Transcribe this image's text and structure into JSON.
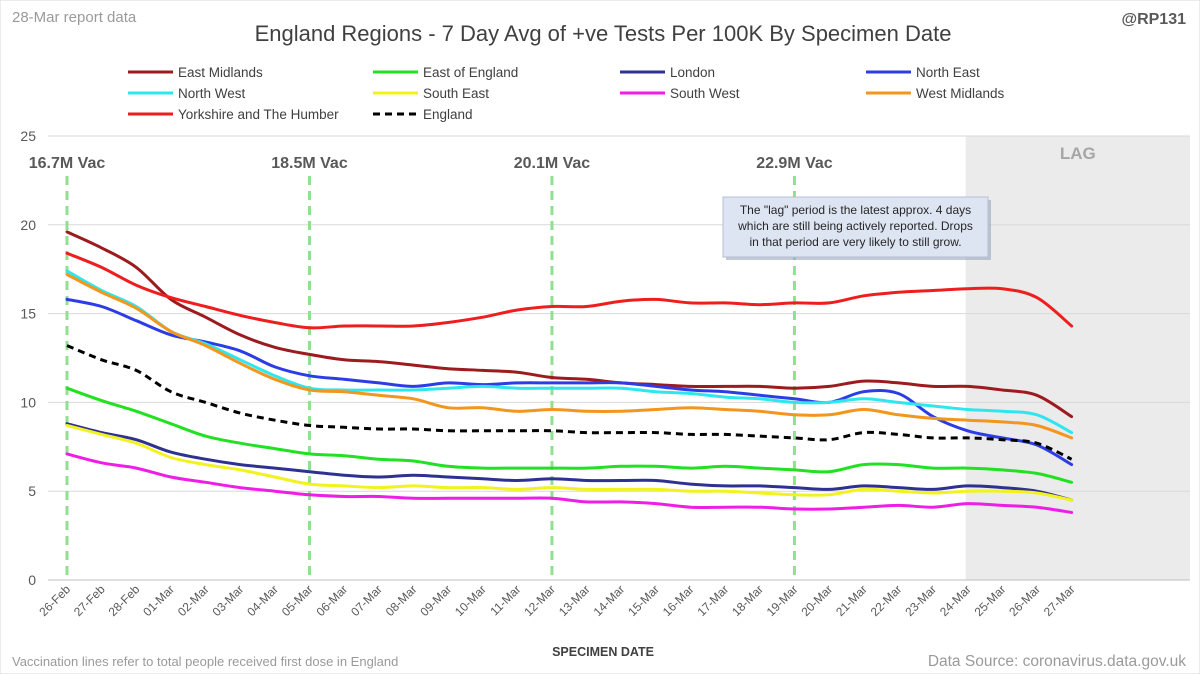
{
  "header": {
    "report_label": "28-Mar report data",
    "handle": "@RP131"
  },
  "footer": {
    "vaccination_note": "Vaccination lines refer to total people received first dose in England",
    "data_source": "Data Source: coronavirus.data.gov.uk"
  },
  "chart_data": {
    "type": "line",
    "title": "England Regions - 7 Day Avg of +ve Tests Per 100K By Specimen Date",
    "xlabel": "SPECIMEN DATE",
    "ylabel": "",
    "ylim": [
      0,
      25
    ],
    "yticks": [
      0,
      5,
      10,
      15,
      20,
      25
    ],
    "grid": "horizontal",
    "legend_position": "top",
    "categories": [
      "26-Feb",
      "27-Feb",
      "28-Feb",
      "01-Mar",
      "02-Mar",
      "03-Mar",
      "04-Mar",
      "05-Mar",
      "06-Mar",
      "07-Mar",
      "08-Mar",
      "09-Mar",
      "10-Mar",
      "11-Mar",
      "12-Mar",
      "13-Mar",
      "14-Mar",
      "15-Mar",
      "16-Mar",
      "17-Mar",
      "18-Mar",
      "19-Mar",
      "20-Mar",
      "21-Mar",
      "22-Mar",
      "23-Mar",
      "24-Mar",
      "25-Mar",
      "26-Mar",
      "27-Mar"
    ],
    "series": [
      {
        "name": "East Midlands",
        "color": "#9b1b1f",
        "style": "solid",
        "values": [
          19.6,
          18.7,
          17.6,
          15.8,
          14.8,
          13.8,
          13.1,
          12.7,
          12.4,
          12.3,
          12.1,
          11.9,
          11.8,
          11.7,
          11.4,
          11.3,
          11.1,
          11.0,
          10.9,
          10.9,
          10.9,
          10.8,
          10.9,
          11.2,
          11.1,
          10.9,
          10.9,
          10.7,
          10.4,
          9.2
        ]
      },
      {
        "name": "East of England",
        "color": "#22e022",
        "style": "solid",
        "values": [
          10.8,
          10.1,
          9.5,
          8.8,
          8.1,
          7.7,
          7.4,
          7.1,
          7.0,
          6.8,
          6.7,
          6.4,
          6.3,
          6.3,
          6.3,
          6.3,
          6.4,
          6.4,
          6.3,
          6.4,
          6.3,
          6.2,
          6.1,
          6.5,
          6.5,
          6.3,
          6.3,
          6.2,
          6.0,
          5.5
        ]
      },
      {
        "name": "London",
        "color": "#2e3192",
        "style": "solid",
        "values": [
          8.8,
          8.3,
          7.9,
          7.2,
          6.8,
          6.5,
          6.3,
          6.1,
          5.9,
          5.8,
          5.9,
          5.8,
          5.7,
          5.6,
          5.7,
          5.6,
          5.6,
          5.6,
          5.4,
          5.3,
          5.3,
          5.2,
          5.1,
          5.3,
          5.2,
          5.1,
          5.3,
          5.2,
          5.0,
          4.5
        ]
      },
      {
        "name": "North East",
        "color": "#2d3de6",
        "style": "solid",
        "values": [
          15.8,
          15.4,
          14.6,
          13.8,
          13.4,
          12.9,
          12.0,
          11.5,
          11.3,
          11.1,
          10.9,
          11.1,
          11.0,
          11.1,
          11.1,
          11.1,
          11.1,
          10.9,
          10.7,
          10.6,
          10.4,
          10.2,
          10.0,
          10.6,
          10.5,
          9.2,
          8.4,
          8.0,
          7.6,
          6.5
        ]
      },
      {
        "name": "North West",
        "color": "#2ee6ee",
        "style": "solid",
        "values": [
          17.4,
          16.3,
          15.4,
          14.0,
          13.3,
          12.4,
          11.5,
          10.8,
          10.7,
          10.7,
          10.7,
          10.8,
          10.9,
          10.8,
          10.8,
          10.8,
          10.8,
          10.6,
          10.5,
          10.3,
          10.2,
          10.0,
          10.0,
          10.2,
          10.0,
          9.8,
          9.6,
          9.5,
          9.3,
          8.3
        ]
      },
      {
        "name": "South East",
        "color": "#f2f21e",
        "style": "solid",
        "values": [
          8.7,
          8.2,
          7.7,
          6.9,
          6.5,
          6.2,
          5.8,
          5.4,
          5.3,
          5.2,
          5.3,
          5.2,
          5.2,
          5.1,
          5.2,
          5.1,
          5.1,
          5.1,
          5.0,
          5.0,
          4.9,
          4.8,
          4.8,
          5.1,
          5.0,
          4.9,
          5.0,
          5.0,
          4.9,
          4.5
        ]
      },
      {
        "name": "South West",
        "color": "#ee1ee6",
        "style": "solid",
        "values": [
          7.1,
          6.6,
          6.3,
          5.8,
          5.5,
          5.2,
          5.0,
          4.8,
          4.7,
          4.7,
          4.6,
          4.6,
          4.6,
          4.6,
          4.6,
          4.4,
          4.4,
          4.3,
          4.1,
          4.1,
          4.1,
          4.0,
          4.0,
          4.1,
          4.2,
          4.1,
          4.3,
          4.2,
          4.1,
          3.8
        ]
      },
      {
        "name": "West Midlands",
        "color": "#f2961e",
        "style": "solid",
        "values": [
          17.2,
          16.2,
          15.3,
          14.0,
          13.2,
          12.2,
          11.3,
          10.7,
          10.6,
          10.4,
          10.2,
          9.7,
          9.7,
          9.5,
          9.6,
          9.5,
          9.5,
          9.6,
          9.7,
          9.6,
          9.5,
          9.3,
          9.3,
          9.6,
          9.3,
          9.1,
          9.0,
          8.9,
          8.7,
          8.0
        ]
      },
      {
        "name": "Yorkshire and The Humber",
        "color": "#ee1e1e",
        "style": "solid",
        "values": [
          18.4,
          17.6,
          16.6,
          15.9,
          15.4,
          14.9,
          14.5,
          14.2,
          14.3,
          14.3,
          14.3,
          14.5,
          14.8,
          15.2,
          15.4,
          15.4,
          15.7,
          15.8,
          15.6,
          15.6,
          15.5,
          15.6,
          15.6,
          16.0,
          16.2,
          16.3,
          16.4,
          16.4,
          15.9,
          14.3
        ]
      },
      {
        "name": "England",
        "color": "#000000",
        "style": "dashed",
        "values": [
          13.2,
          12.4,
          11.8,
          10.6,
          10.0,
          9.4,
          9.0,
          8.7,
          8.6,
          8.5,
          8.5,
          8.4,
          8.4,
          8.4,
          8.4,
          8.3,
          8.3,
          8.3,
          8.2,
          8.2,
          8.1,
          8.0,
          7.9,
          8.3,
          8.2,
          8.0,
          8.0,
          7.9,
          7.7,
          6.8
        ]
      }
    ],
    "vaccination_markers": [
      {
        "date": "26-Feb",
        "label": "16.7M Vac"
      },
      {
        "date": "05-Mar",
        "label": "18.5M Vac"
      },
      {
        "date": "12-Mar",
        "label": "20.1M Vac"
      },
      {
        "date": "19-Mar",
        "label": "22.9M Vac"
      }
    ],
    "lag_region": {
      "start": "24-Mar",
      "end": "27-Mar",
      "label": "LAG"
    },
    "annotation": {
      "lines": [
        "The \"lag\" period is the latest approx. 4 days",
        "which are still being actively reported. Drops",
        "in that period are very likely to still grow."
      ]
    }
  }
}
